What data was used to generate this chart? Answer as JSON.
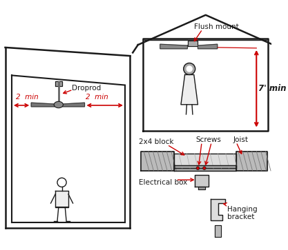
{
  "bg_color": "#ffffff",
  "line_color": "#1a1a1a",
  "red_color": "#cc0000",
  "gray_color": "#888888",
  "light_gray": "#cccccc",
  "dark_gray": "#555555",
  "labels": {
    "flush_mount": "Flush mount",
    "droprod": "Droprod",
    "two_min_left": "2  min",
    "two_min_right": "2  min",
    "seven_ft": "7' min",
    "screws": "Screws",
    "block": "2x4 block",
    "joist": "Joist",
    "elec_box": "Electrical box",
    "hang_bracket": "Hanging\nbracket"
  }
}
